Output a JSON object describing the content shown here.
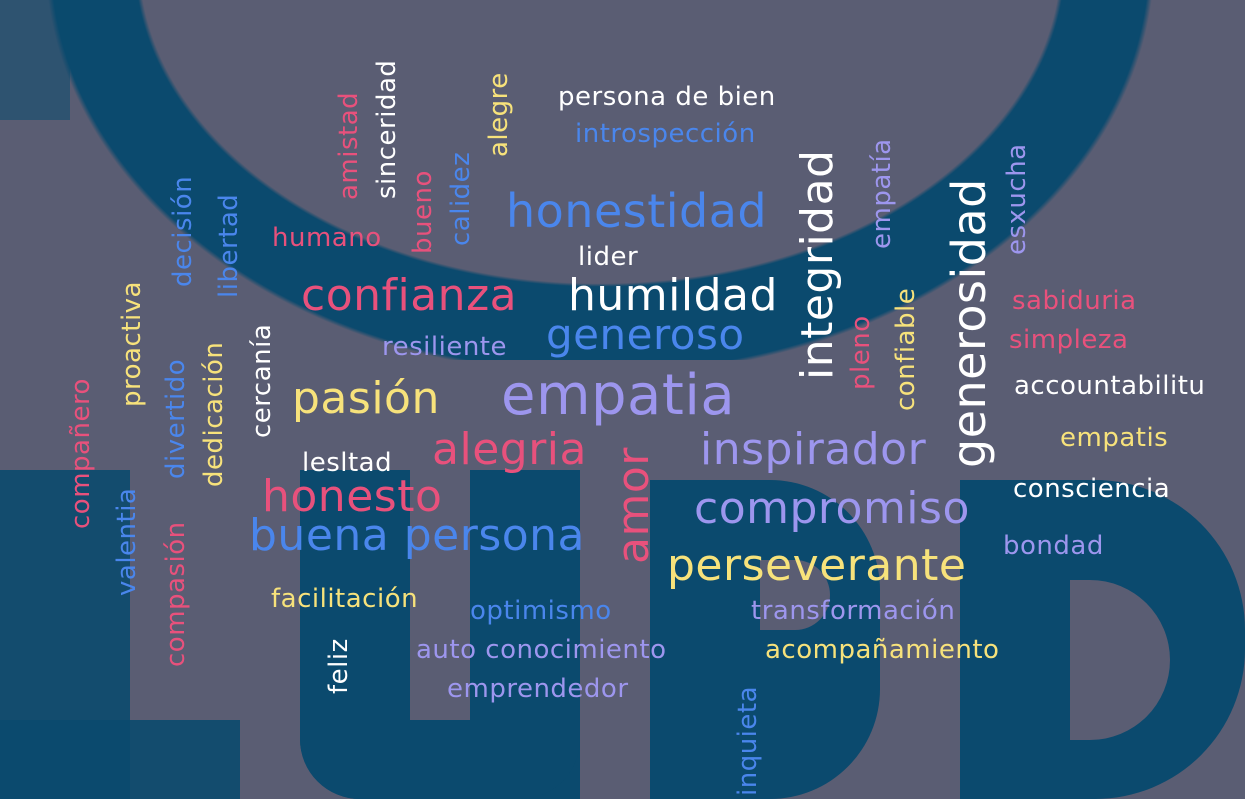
{
  "words": {
    "persona_de_bien": "persona de bien",
    "introspeccion": "introspección",
    "amistad": "amistad",
    "sinceridad": "sinceridad",
    "bueno": "bueno",
    "calidez": "calidez",
    "alegre": "alegre",
    "honestidad": "honestidad",
    "integridad": "integridad",
    "empatia_accent": "empatía",
    "esxucha": "esxucha",
    "generosidad": "generosidad",
    "decision": "decisión",
    "libertad": "libertad",
    "humano": "humano",
    "lider": "lider",
    "confianza": "confianza",
    "humildad": "humildad",
    "proactiva": "proactiva",
    "sabiduria": "sabiduria",
    "generoso": "generoso",
    "cercania": "cercanía",
    "resiliente": "resiliente",
    "pleno": "pleno",
    "confiable": "confiable",
    "simpleza": "simpleza",
    "companero": "compañero",
    "divertido": "divertido",
    "dedicacion": "dedicación",
    "pasion": "pasión",
    "empatia": "empatia",
    "accountabilitu": "accountabilitu",
    "inspirador": "inspirador",
    "empatis": "empatis",
    "alegria": "alegria",
    "lesltad": "lesltad",
    "honesto": "honesto",
    "amor": "amor",
    "consciencia": "consciencia",
    "compromiso": "compromiso",
    "valentia": "valentia",
    "buena_persona": "buena persona",
    "bondad": "bondad",
    "compasion": "compasión",
    "perseverante": "perseverante",
    "facilitacion": "facilitación",
    "optimismo": "optimismo",
    "transformacion": "transformación",
    "feliz": "feliz",
    "auto_conocimiento": "auto conocimiento",
    "acompanamiento": "acompañamiento",
    "emprendedor": "emprendedor",
    "inquieta": "inquieta"
  },
  "colors": {
    "background": "#5a5d73",
    "logo": "#0b4a6e",
    "white": "#ffffff",
    "blue": "#4a86ec",
    "pink": "#e8517c",
    "yellow": "#f7e27b",
    "lavender": "#9d96ee"
  }
}
